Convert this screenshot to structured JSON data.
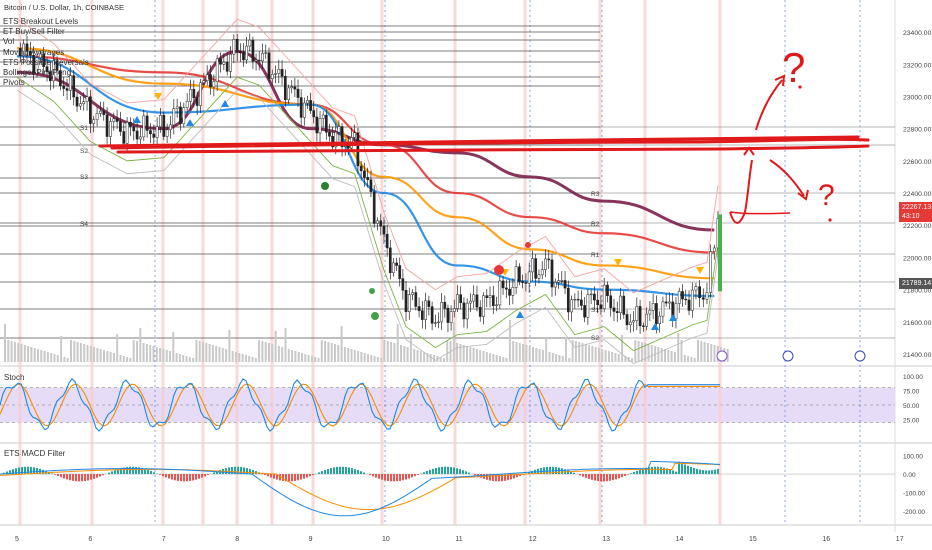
{
  "header": {
    "symbol_title": "Bitcoin / U.S. Dollar, 1h, COINBASE"
  },
  "legend": {
    "items": [
      "ETS Breakout Levels",
      "ET Buy/Sell Filter",
      "Vol",
      "Moving Averages",
      "ETS Possible Reversals",
      "Bollinger PingPong",
      "Pivots"
    ]
  },
  "price_axis": {
    "ticks": [
      "23400.00",
      "23200.00",
      "23000.00",
      "22800.00",
      "22600.00",
      "22400.00",
      "22200.00",
      "22000.00",
      "21800.00",
      "21600.00",
      "21400.00"
    ],
    "last_price": "22267.13",
    "countdown": "43:10",
    "secondary_price": "21789.14"
  },
  "pivots": {
    "labels": [
      "S1",
      "S2",
      "S3",
      "S4",
      "R3",
      "R2",
      "R1",
      "S1",
      "S2"
    ]
  },
  "stoch": {
    "title": "Stoch",
    "ticks": [
      "100.00",
      "75.00",
      "50.00",
      "25.00"
    ]
  },
  "macd": {
    "title": "ETS MACD Filter",
    "ticks": [
      "100.00",
      "0.00",
      "-100.00",
      "-200.00"
    ]
  },
  "time_axis": {
    "labels": [
      "5",
      "6",
      "7",
      "8",
      "9",
      "10",
      "11",
      "12",
      "13",
      "14",
      "15",
      "16",
      "17"
    ]
  },
  "annotations": {
    "question_marks": [
      "?",
      "?"
    ]
  },
  "colors": {
    "ma_teal": "#1E88E5",
    "ma_orange": "#FF9800",
    "ma_red": "#E53935",
    "ma_maroon": "#7B1F4A",
    "ma_purple": "#9C27B0",
    "ma_green": "#43A047",
    "drawing_red": "#E0191B",
    "stoch_k": "#1E88E5",
    "stoch_d": "#FB8C00",
    "stoch_band": "#E7DCF7"
  },
  "chart_data": {
    "type": "candlestick",
    "title": "Bitcoin / U.S. Dollar, 1h, COINBASE",
    "x_day_labels": [
      "5",
      "6",
      "7",
      "8",
      "9",
      "10",
      "11",
      "12",
      "13",
      "14",
      "15",
      "16",
      "17"
    ],
    "price_range": [
      21350,
      23550
    ],
    "approx_close_path": [
      [
        5.0,
        23300
      ],
      [
        5.5,
        23150
      ],
      [
        6.0,
        22900
      ],
      [
        6.5,
        22780
      ],
      [
        7.0,
        22800
      ],
      [
        7.5,
        23050
      ],
      [
        8.0,
        23300
      ],
      [
        8.3,
        23250
      ],
      [
        8.7,
        23050
      ],
      [
        9.0,
        22900
      ],
      [
        9.3,
        22750
      ],
      [
        9.6,
        22700
      ],
      [
        10.0,
        22100
      ],
      [
        10.3,
        21750
      ],
      [
        10.7,
        21620
      ],
      [
        11.0,
        21700
      ],
      [
        11.4,
        21720
      ],
      [
        11.8,
        21850
      ],
      [
        12.2,
        21950
      ],
      [
        12.6,
        21700
      ],
      [
        13.0,
        21750
      ],
      [
        13.4,
        21600
      ],
      [
        13.8,
        21680
      ],
      [
        14.2,
        21760
      ],
      [
        14.4,
        21789
      ],
      [
        14.55,
        22267
      ]
    ],
    "pivot_levels": [
      {
        "label": "R3",
        "value": 22360
      },
      {
        "label": "R2",
        "value": 22170
      },
      {
        "label": "R1",
        "value": 21980
      },
      {
        "label": "S1",
        "value": 21600
      },
      {
        "label": "S2",
        "value": 21430
      },
      {
        "label": "S2",
        "value": 22625
      },
      {
        "label": "S3",
        "value": 22480
      },
      {
        "label": "S4",
        "value": 22210
      }
    ],
    "moving_averages": [
      {
        "name": "",
        "color": "maroon",
        "values": [
          [
            5,
            23150
          ],
          [
            7,
            22800
          ],
          [
            8,
            23280
          ],
          [
            9,
            22800
          ],
          [
            10,
            22700
          ],
          [
            11,
            22650
          ],
          [
            12,
            22500
          ],
          [
            13,
            22350
          ],
          [
            14.5,
            22170
          ]
        ]
      },
      {
        "name": "",
        "color": "red",
        "values": [
          [
            5,
            23250
          ],
          [
            7,
            23150
          ],
          [
            9,
            22950
          ],
          [
            10,
            22700
          ],
          [
            11,
            22400
          ],
          [
            12,
            22250
          ],
          [
            13,
            22150
          ],
          [
            14.5,
            22030
          ]
        ]
      },
      {
        "name": "",
        "color": "orange",
        "values": [
          [
            5,
            23300
          ],
          [
            7,
            23080
          ],
          [
            9,
            22950
          ],
          [
            10,
            22500
          ],
          [
            11,
            22250
          ],
          [
            12,
            22050
          ],
          [
            13,
            21950
          ],
          [
            14.5,
            21870
          ]
        ]
      },
      {
        "name": "",
        "color": "teal",
        "values": [
          [
            5,
            23250
          ],
          [
            7,
            22900
          ],
          [
            9,
            22950
          ],
          [
            10,
            22400
          ],
          [
            11,
            21950
          ],
          [
            12,
            21850
          ],
          [
            13,
            21800
          ],
          [
            14.5,
            21760
          ]
        ]
      }
    ],
    "stoch_range": [
      0,
      100
    ],
    "macd_range": [
      -250,
      120
    ],
    "last_price": 22267.13
  }
}
